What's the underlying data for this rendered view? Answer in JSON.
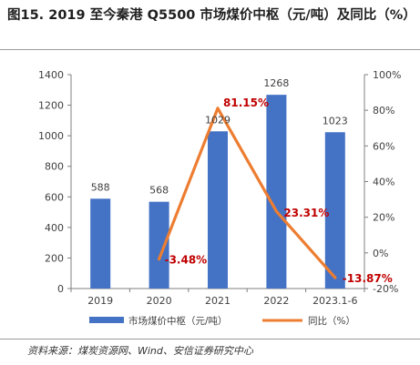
{
  "header": {
    "title": "图15. 2019 至今秦港 Q5500 市场煤价中枢（元/吨）及同比（%）"
  },
  "footer": {
    "source": "资料来源：煤炭资源网、Wind、安信证券研究中心"
  },
  "chart_data": {
    "type": "bar",
    "categories": [
      "2019",
      "2020",
      "2021",
      "2022",
      "2023.1-6"
    ],
    "series": [
      {
        "name": "市场煤价中枢（元/吨）",
        "type": "bar",
        "axis": "left",
        "color": "#4472c4",
        "values": [
          588,
          568,
          1029,
          1268,
          1023
        ],
        "labels": [
          "588",
          "568",
          "1029",
          "1268",
          "1023"
        ]
      },
      {
        "name": "同比（%）",
        "type": "line",
        "axis": "right",
        "color": "#ed7d31",
        "values": [
          null,
          -3.48,
          81.15,
          23.31,
          -13.87
        ],
        "labels": [
          "",
          "-3.48%",
          "81.15%",
          "23.31%",
          "-13.87%"
        ],
        "label_color": "#c00000"
      }
    ],
    "y_left": {
      "min": 0,
      "max": 1400,
      "ticks": [
        "0",
        "200",
        "400",
        "600",
        "800",
        "1000",
        "1200",
        "1400"
      ]
    },
    "y_right": {
      "min": -20,
      "max": 100,
      "ticks": [
        "-20%",
        "0%",
        "20%",
        "40%",
        "60%",
        "80%",
        "100%"
      ]
    },
    "grid": false,
    "legend_position": "bottom"
  }
}
